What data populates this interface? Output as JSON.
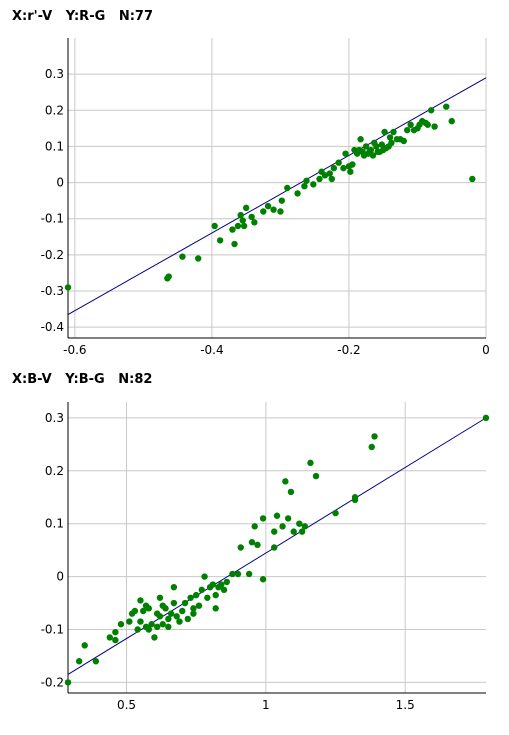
{
  "chart_data": [
    {
      "type": "scatter",
      "title": "X:r'-V   Y:R-G   N:77",
      "xlim": [
        -0.61,
        0.0
      ],
      "ylim": [
        -0.43,
        0.4
      ],
      "xticks": [
        -0.6,
        -0.4,
        -0.2,
        0
      ],
      "xtick_labels": [
        "-0.6",
        "-0.4",
        "-0.2",
        "0"
      ],
      "yticks": [
        0.3,
        0.2,
        0.1,
        0,
        -0.1,
        -0.2,
        -0.3,
        -0.4
      ],
      "ytick_labels": [
        "0.3",
        "0.2",
        "0.1",
        "0",
        "-0.1",
        "-0.2",
        "-0.3",
        "-0.4"
      ],
      "grid": true,
      "point_color": "#008000",
      "line_color": "#00007f",
      "fit_line": {
        "x": [
          -0.61,
          0.0
        ],
        "y": [
          -0.365,
          0.29
        ]
      },
      "points": [
        [
          -0.61,
          -0.29
        ],
        [
          -0.465,
          -0.265
        ],
        [
          -0.463,
          -0.26
        ],
        [
          -0.443,
          -0.205
        ],
        [
          -0.42,
          -0.21
        ],
        [
          -0.396,
          -0.12
        ],
        [
          -0.388,
          -0.16
        ],
        [
          -0.37,
          -0.13
        ],
        [
          -0.367,
          -0.17
        ],
        [
          -0.362,
          -0.12
        ],
        [
          -0.358,
          -0.09
        ],
        [
          -0.355,
          -0.105
        ],
        [
          -0.353,
          -0.12
        ],
        [
          -0.35,
          -0.07
        ],
        [
          -0.338,
          -0.11
        ],
        [
          -0.325,
          -0.08
        ],
        [
          -0.318,
          -0.065
        ],
        [
          -0.3,
          -0.08
        ],
        [
          -0.298,
          -0.05
        ],
        [
          -0.29,
          -0.015
        ],
        [
          -0.275,
          -0.03
        ],
        [
          -0.265,
          -0.01
        ],
        [
          -0.262,
          0.005
        ],
        [
          -0.252,
          -0.005
        ],
        [
          -0.243,
          0.01
        ],
        [
          -0.24,
          0.03
        ],
        [
          -0.235,
          0.02
        ],
        [
          -0.228,
          0.025
        ],
        [
          -0.225,
          0.01
        ],
        [
          -0.222,
          0.04
        ],
        [
          -0.215,
          0.055
        ],
        [
          -0.208,
          0.04
        ],
        [
          -0.205,
          0.08
        ],
        [
          -0.198,
          0.03
        ],
        [
          -0.195,
          0.05
        ],
        [
          -0.192,
          0.09
        ],
        [
          -0.188,
          0.08
        ],
        [
          -0.185,
          0.09
        ],
        [
          -0.183,
          0.12
        ],
        [
          -0.18,
          0.085
        ],
        [
          -0.178,
          0.075
        ],
        [
          -0.175,
          0.1
        ],
        [
          -0.172,
          0.08
        ],
        [
          -0.17,
          0.085
        ],
        [
          -0.168,
          0.09
        ],
        [
          -0.165,
          0.075
        ],
        [
          -0.163,
          0.11
        ],
        [
          -0.16,
          0.1
        ],
        [
          -0.158,
          0.085
        ],
        [
          -0.155,
          0.085
        ],
        [
          -0.152,
          0.105
        ],
        [
          -0.15,
          0.09
        ],
        [
          -0.148,
          0.14
        ],
        [
          -0.146,
          0.095
        ],
        [
          -0.142,
          0.1
        ],
        [
          -0.138,
          0.11
        ],
        [
          -0.135,
          0.14
        ],
        [
          -0.13,
          0.12
        ],
        [
          -0.125,
          0.12
        ],
        [
          -0.12,
          0.115
        ],
        [
          -0.115,
          0.145
        ],
        [
          -0.11,
          0.16
        ],
        [
          -0.105,
          0.145
        ],
        [
          -0.1,
          0.15
        ],
        [
          -0.097,
          0.16
        ],
        [
          -0.093,
          0.17
        ],
        [
          -0.088,
          0.165
        ],
        [
          -0.08,
          0.2
        ],
        [
          -0.075,
          0.155
        ],
        [
          -0.058,
          0.21
        ],
        [
          -0.05,
          0.17
        ],
        [
          -0.02,
          0.01
        ],
        [
          -0.085,
          0.16
        ],
        [
          -0.14,
          0.125
        ],
        [
          -0.2,
          0.045
        ],
        [
          -0.31,
          -0.075
        ],
        [
          -0.342,
          -0.095
        ]
      ]
    },
    {
      "type": "scatter",
      "title": "X:B-V   Y:B-G   N:82",
      "xlim": [
        0.29,
        1.79
      ],
      "ylim": [
        -0.22,
        0.33
      ],
      "xticks": [
        0.5,
        1,
        1.5
      ],
      "xtick_labels": [
        "0.5",
        "1",
        "1.5"
      ],
      "yticks": [
        0.3,
        0.2,
        0.1,
        0,
        -0.1,
        -0.2
      ],
      "ytick_labels": [
        "0.3",
        "0.2",
        "0.1",
        "0",
        "-0.1",
        "-0.2"
      ],
      "grid": true,
      "point_color": "#008000",
      "line_color": "#00007f",
      "fit_line": {
        "x": [
          0.29,
          1.79
        ],
        "y": [
          -0.185,
          0.3
        ]
      },
      "points": [
        [
          0.29,
          -0.2
        ],
        [
          0.33,
          -0.16
        ],
        [
          0.35,
          -0.13
        ],
        [
          0.39,
          -0.16
        ],
        [
          0.44,
          -0.115
        ],
        [
          0.46,
          -0.12
        ],
        [
          0.46,
          -0.105
        ],
        [
          0.48,
          -0.09
        ],
        [
          0.51,
          -0.085
        ],
        [
          0.52,
          -0.07
        ],
        [
          0.53,
          -0.065
        ],
        [
          0.54,
          -0.1
        ],
        [
          0.55,
          -0.085
        ],
        [
          0.55,
          -0.045
        ],
        [
          0.56,
          -0.065
        ],
        [
          0.57,
          -0.055
        ],
        [
          0.57,
          -0.095
        ],
        [
          0.58,
          -0.06
        ],
        [
          0.59,
          -0.09
        ],
        [
          0.6,
          -0.115
        ],
        [
          0.61,
          -0.095
        ],
        [
          0.61,
          -0.07
        ],
        [
          0.62,
          -0.075
        ],
        [
          0.62,
          -0.04
        ],
        [
          0.63,
          -0.09
        ],
        [
          0.63,
          -0.055
        ],
        [
          0.64,
          -0.06
        ],
        [
          0.65,
          -0.08
        ],
        [
          0.65,
          -0.095
        ],
        [
          0.66,
          -0.07
        ],
        [
          0.67,
          -0.05
        ],
        [
          0.67,
          -0.02
        ],
        [
          0.68,
          -0.075
        ],
        [
          0.69,
          -0.085
        ],
        [
          0.7,
          -0.065
        ],
        [
          0.71,
          -0.05
        ],
        [
          0.72,
          -0.08
        ],
        [
          0.73,
          -0.04
        ],
        [
          0.74,
          -0.06
        ],
        [
          0.75,
          -0.035
        ],
        [
          0.76,
          -0.055
        ],
        [
          0.77,
          -0.025
        ],
        [
          0.78,
          0.0
        ],
        [
          0.79,
          -0.04
        ],
        [
          0.8,
          -0.02
        ],
        [
          0.81,
          -0.015
        ],
        [
          0.82,
          -0.06
        ],
        [
          0.82,
          -0.035
        ],
        [
          0.83,
          -0.02
        ],
        [
          0.84,
          -0.015
        ],
        [
          0.85,
          -0.025
        ],
        [
          0.86,
          -0.01
        ],
        [
          0.88,
          0.005
        ],
        [
          0.9,
          0.005
        ],
        [
          0.91,
          0.055
        ],
        [
          0.94,
          0.005
        ],
        [
          0.95,
          0.065
        ],
        [
          0.96,
          0.095
        ],
        [
          0.99,
          -0.005
        ],
        [
          0.99,
          0.11
        ],
        [
          1.03,
          0.055
        ],
        [
          1.03,
          0.085
        ],
        [
          1.04,
          0.115
        ],
        [
          1.06,
          0.095
        ],
        [
          1.07,
          0.18
        ],
        [
          1.08,
          0.11
        ],
        [
          1.09,
          0.16
        ],
        [
          1.1,
          0.085
        ],
        [
          1.12,
          0.1
        ],
        [
          1.13,
          0.085
        ],
        [
          1.14,
          0.095
        ],
        [
          1.16,
          0.215
        ],
        [
          1.18,
          0.19
        ],
        [
          1.25,
          0.12
        ],
        [
          1.32,
          0.145
        ],
        [
          1.32,
          0.15
        ],
        [
          1.38,
          0.245
        ],
        [
          1.39,
          0.265
        ],
        [
          1.79,
          0.3
        ],
        [
          0.97,
          0.06
        ],
        [
          0.74,
          -0.07
        ],
        [
          0.58,
          -0.1
        ]
      ]
    }
  ]
}
